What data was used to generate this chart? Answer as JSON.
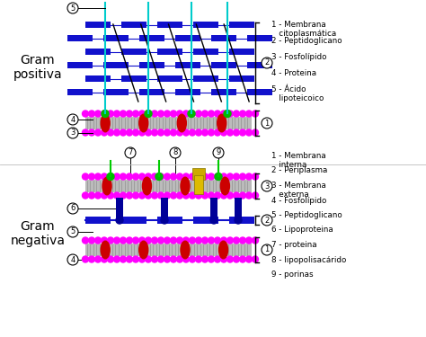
{
  "bg_color": "#ffffff",
  "blue": "#1111cc",
  "magenta": "#ff00ff",
  "red": "#cc0000",
  "green": "#00cc00",
  "cyan": "#00cccc",
  "black": "#000000",
  "navy": "#000099",
  "gold": "#ccaa00",
  "gray_tail": "#bbbbbb",
  "gram_pos_label": "Gram\npositiva",
  "gram_neg_label": "Gram\nnegativa",
  "legend_pos": [
    "1 - Membrana\n   citoplasmática",
    "2 - Peptidoglicano",
    "3 - Fosfolípido",
    "4 - Proteina",
    "5 - Ácido\n   lipoteicoico"
  ],
  "legend_neg": [
    "1 - Membrana\n   interna",
    "2 - Periplasma",
    "3 - Membrana\n   externa",
    "4 - Fosfolípido",
    "5 - Peptidoglicano",
    "6 - Lipoproteina",
    "7 - proteina",
    "8 - lipopolisacárido",
    "9 - porinas"
  ]
}
